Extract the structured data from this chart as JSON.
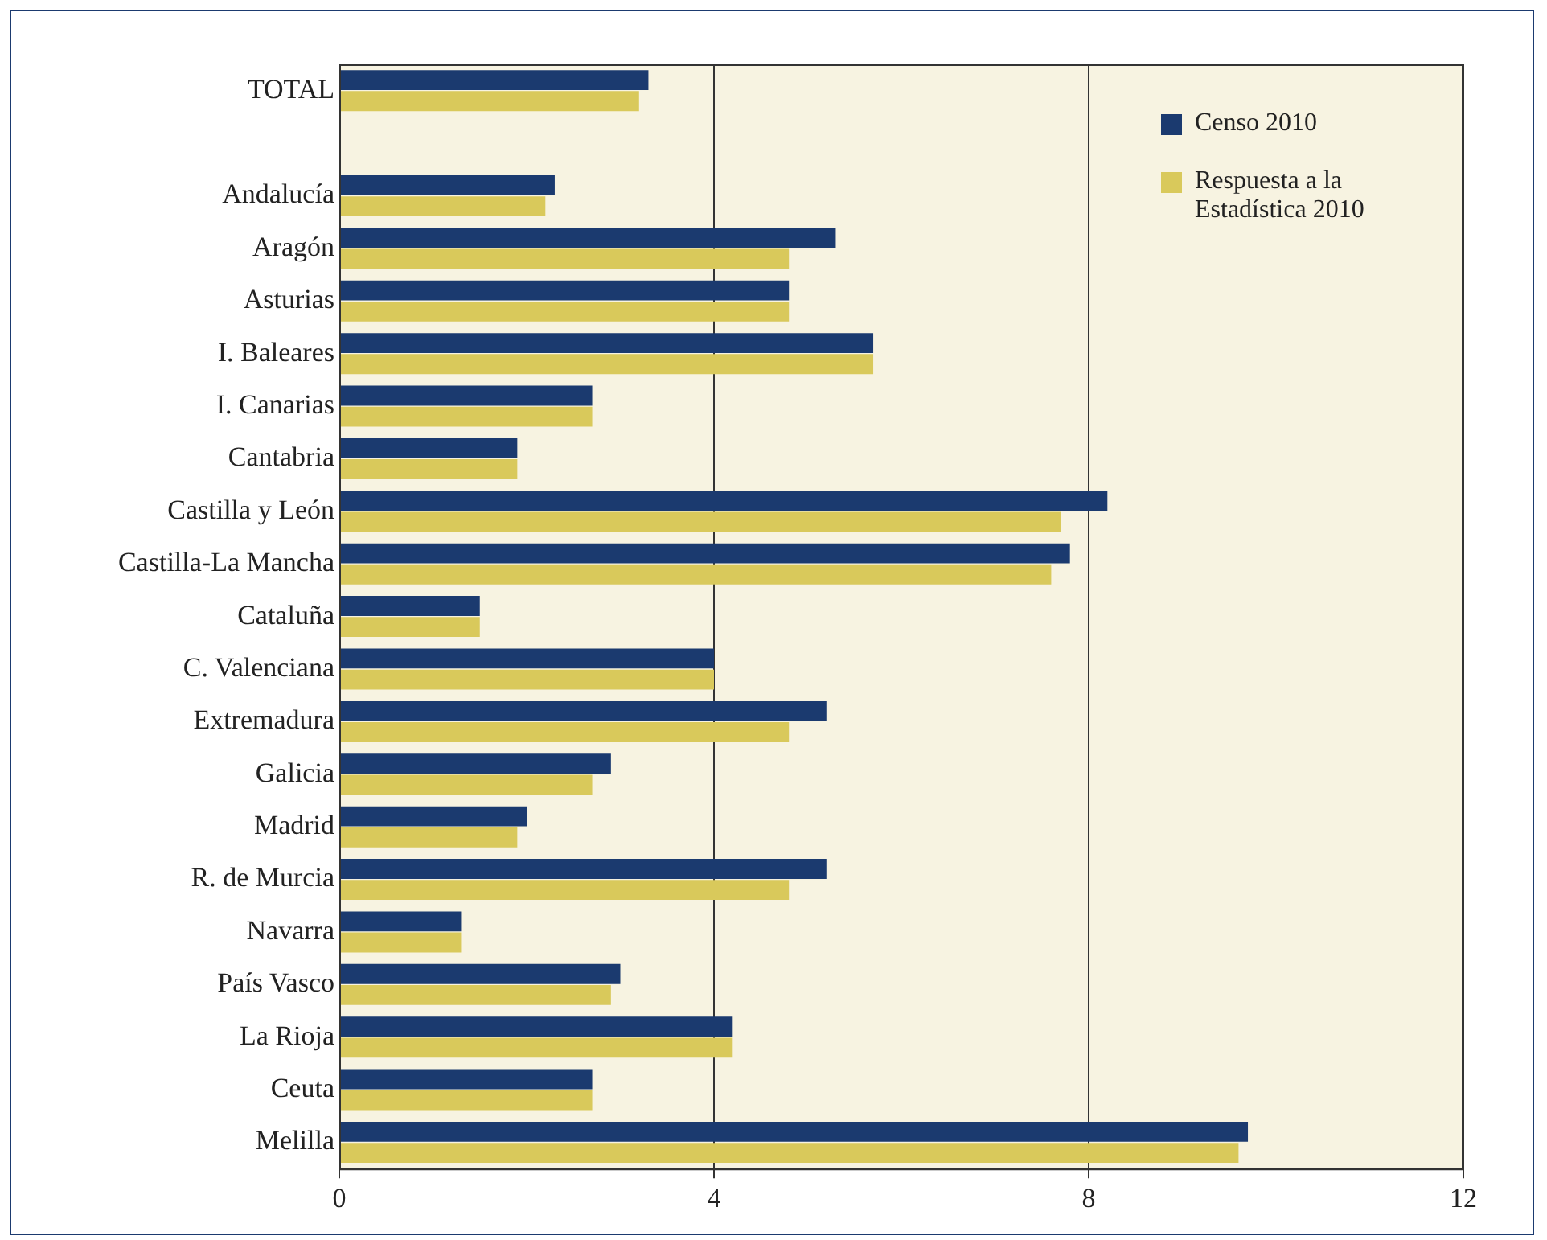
{
  "chart_data": {
    "type": "bar",
    "orientation": "horizontal",
    "categories": [
      "TOTAL",
      null,
      "Andalucía",
      "Aragón",
      "Asturias",
      "I. Baleares",
      "I. Canarias",
      "Cantabria",
      "Castilla y León",
      "Castilla-La Mancha",
      "Cataluña",
      "C. Valenciana",
      "Extremadura",
      "Galicia",
      "Madrid",
      "R. de Murcia",
      "Navarra",
      "País Vasco",
      "La Rioja",
      "Ceuta",
      "Melilla"
    ],
    "series": [
      {
        "name": "Censo 2010",
        "color": "#1b3a6f",
        "values": [
          3.3,
          null,
          2.3,
          5.3,
          4.8,
          5.7,
          2.7,
          1.9,
          8.2,
          7.8,
          1.5,
          4.0,
          5.2,
          2.9,
          2.0,
          5.2,
          1.3,
          3.0,
          4.2,
          2.7,
          9.7
        ]
      },
      {
        "name": "Respuesta a la Estadística 2010",
        "color": "#d9c95b",
        "values": [
          3.2,
          null,
          2.2,
          4.8,
          4.8,
          5.7,
          2.7,
          1.9,
          7.7,
          7.6,
          1.5,
          4.0,
          4.8,
          2.7,
          1.9,
          4.8,
          1.3,
          2.9,
          4.2,
          2.7,
          9.6
        ]
      }
    ],
    "xlim": [
      0,
      12
    ],
    "xticks": [
      0,
      4,
      8,
      12
    ],
    "grid": "x",
    "legend": "top right"
  }
}
